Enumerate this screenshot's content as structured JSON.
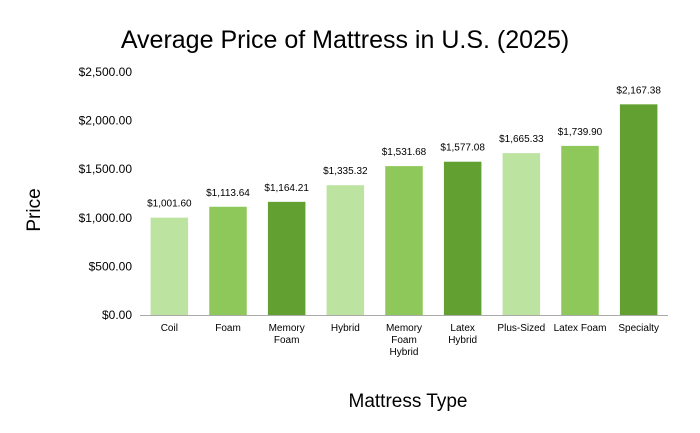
{
  "chart_data": {
    "type": "bar",
    "title": "Average Price of Mattress in U.S. (2025)",
    "xlabel": "Mattress Type",
    "ylabel": "Price",
    "ylim": [
      0,
      2500
    ],
    "yticks": [
      "$0.00",
      "$500.00",
      "$1,000.00",
      "$1,500.00",
      "$2,000.00",
      "$2,500.00"
    ],
    "grid": false,
    "categories": [
      "Coil",
      "Foam",
      "Memory Foam",
      "Hybrid",
      "Memory Foam Hybrid",
      "Latex Hybrid",
      "Plus-Sized",
      "Latex Foam",
      "Specialty"
    ],
    "values": [
      1001.6,
      1113.64,
      1164.21,
      1335.32,
      1531.68,
      1577.08,
      1665.33,
      1739.9,
      2167.38
    ],
    "data_labels": [
      "$1,001.60",
      "$1,113.64",
      "$1,164.21",
      "$1,335.32",
      "$1,531.68",
      "$1,577.08",
      "$1,665.33",
      "$1,739.90",
      "$2,167.38"
    ],
    "colors": [
      "#bde3a1",
      "#8fc85a",
      "#63a032",
      "#bde3a1",
      "#8fc85a",
      "#63a032",
      "#bde3a1",
      "#8fc85a",
      "#63a032"
    ]
  }
}
